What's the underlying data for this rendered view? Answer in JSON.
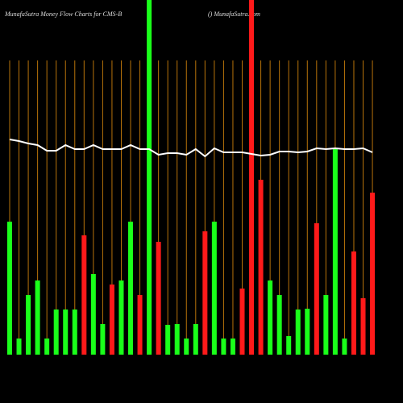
{
  "chart_data": {
    "type": "bar",
    "title": "MunafaSutra  Money Flow  Charts for CMS-B",
    "subtitle": "() MunafaSutra.com",
    "ylim": [
      0,
      440
    ],
    "category_line_color": "#b8730a",
    "bars": {
      "values": [
        165,
        20,
        74,
        92,
        20,
        56,
        56,
        56,
        148,
        100,
        38,
        87,
        92,
        165,
        74,
        440,
        140,
        37,
        38,
        20,
        38,
        153,
        165,
        20,
        20,
        82,
        440,
        217,
        92,
        74,
        23,
        56,
        57,
        163,
        74,
        256,
        20,
        128,
        70,
        201
      ],
      "colors": [
        "#1aff1a",
        "#1aff1a",
        "#1aff1a",
        "#1aff1a",
        "#1aff1a",
        "#1aff1a",
        "#1aff1a",
        "#1aff1a",
        "#ff1a1a",
        "#1aff1a",
        "#1aff1a",
        "#ff1a1a",
        "#1aff1a",
        "#1aff1a",
        "#ff1a1a",
        "#1aff1a",
        "#ff1a1a",
        "#1aff1a",
        "#1aff1a",
        "#1aff1a",
        "#1aff1a",
        "#ff1a1a",
        "#1aff1a",
        "#1aff1a",
        "#1aff1a",
        "#ff1a1a",
        "#ff1a1a",
        "#ff1a1a",
        "#1aff1a",
        "#1aff1a",
        "#1aff1a",
        "#1aff1a",
        "#1aff1a",
        "#ff1a1a",
        "#1aff1a",
        "#1aff1a",
        "#1aff1a",
        "#ff1a1a",
        "#ff1a1a",
        "#ff1a1a"
      ]
    },
    "line": {
      "color": "#ffffff",
      "values": [
        267,
        265,
        262,
        260,
        253,
        253,
        260,
        255,
        255,
        260,
        255,
        255,
        255,
        260,
        255,
        255,
        248,
        250,
        250,
        248,
        255,
        246,
        256,
        251,
        251,
        251,
        249,
        247,
        248,
        252,
        252,
        251,
        252,
        256,
        255,
        256,
        255,
        255,
        256,
        251
      ]
    }
  }
}
